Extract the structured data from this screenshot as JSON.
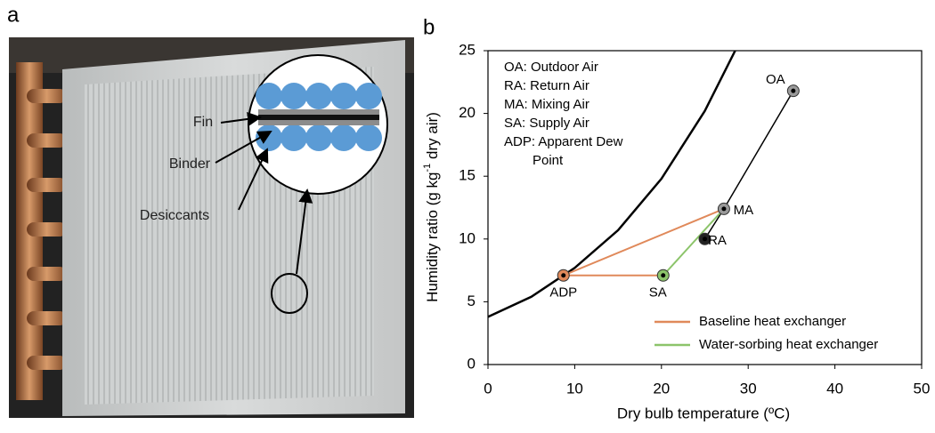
{
  "panel_a": {
    "label": "a",
    "annotations": [
      "Fin",
      "Binder",
      "Desiccants"
    ]
  },
  "chart_data": {
    "type": "line",
    "label": "b",
    "x_label": "Dry bulb temperature (ºC)",
    "y_label": [
      "Humidity ratio (g kg",
      "-1",
      " dry air)"
    ],
    "xlim": [
      0,
      50
    ],
    "xticks": [
      0,
      10,
      20,
      30,
      40,
      50
    ],
    "ylim": [
      0,
      25
    ],
    "yticks": [
      0,
      5,
      10,
      15,
      20,
      25
    ],
    "annotations": [
      "OA: Outdoor Air",
      "RA: Return Air",
      "MA: Mixing Air",
      "SA: Supply Air",
      "ADP: Apparent Dew",
      "Point"
    ],
    "saturation_curve": {
      "color": "#000000",
      "x": [
        0,
        5,
        10,
        15,
        20,
        25,
        28.5
      ],
      "y": [
        3.8,
        5.4,
        7.7,
        10.7,
        14.8,
        20.2,
        25
      ]
    },
    "process_line": {
      "color": "#000000",
      "x": [
        35.2,
        27.2,
        25.0
      ],
      "y": [
        21.8,
        12.4,
        10.0
      ]
    },
    "series": [
      {
        "name": "Baseline heat exchanger",
        "color": "#e0895a",
        "x": [
          20.2,
          8.7,
          27.2
        ],
        "y": [
          7.1,
          7.1,
          12.4
        ]
      },
      {
        "name": "Water-sorbing heat exchanger",
        "color": "#8cc46a",
        "x": [
          20.2,
          27.2
        ],
        "y": [
          7.1,
          12.4
        ]
      }
    ],
    "points": {
      "labels": [
        "OA",
        "RA",
        "MA",
        "SA",
        "ADP"
      ],
      "x": [
        35.2,
        25.0,
        27.2,
        20.2,
        8.7
      ],
      "y": [
        21.8,
        10.0,
        12.4,
        7.1,
        7.1
      ],
      "colors": [
        "#9a9a9a",
        "#222222",
        "#9a9a9a",
        "#8cc46a",
        "#e0895a"
      ]
    },
    "legend": "lower right"
  }
}
